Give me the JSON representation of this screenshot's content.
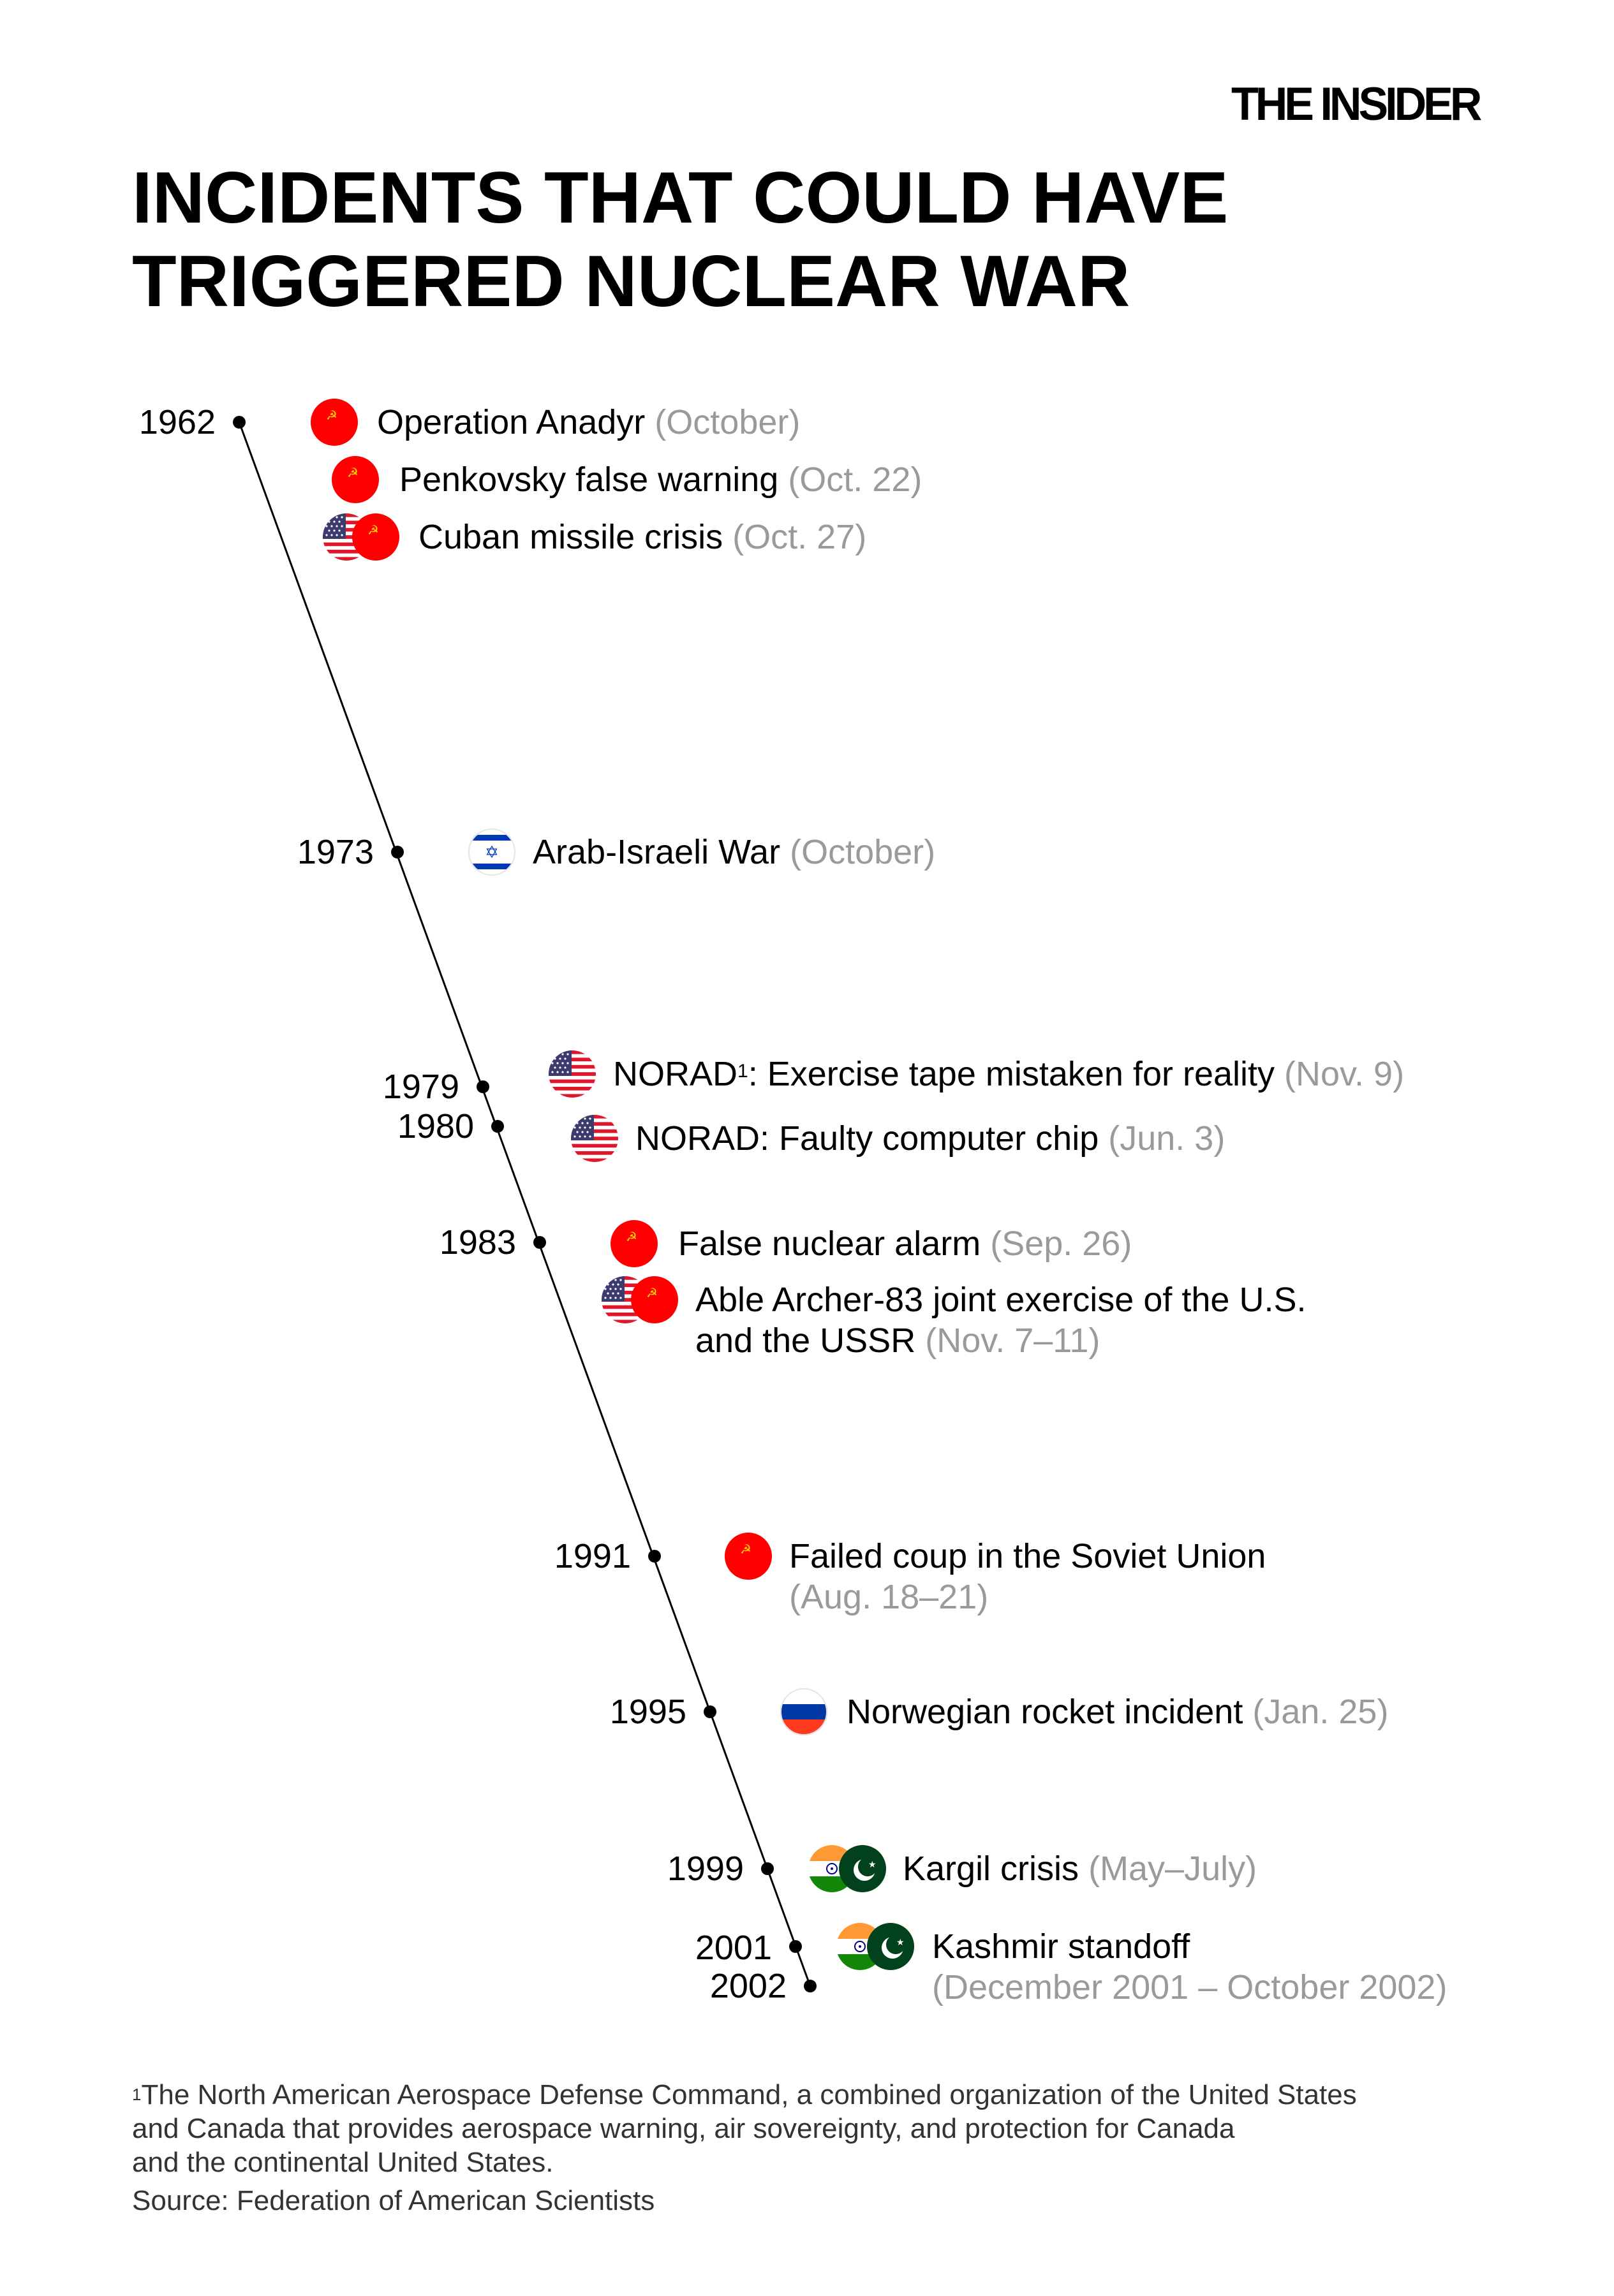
{
  "brand": "THE INSIDER",
  "title": {
    "line1": "INCIDENTS THAT COULD HAVE",
    "line2": "TRIGGERED NUCLEAR WAR"
  },
  "years": [
    "1962",
    "1973",
    "1979",
    "1980",
    "1983",
    "1991",
    "1995",
    "1999",
    "2001",
    "2002"
  ],
  "events": [
    {
      "name": "Operation Anadyr",
      "date": "(October)",
      "flags": [
        "ussr"
      ]
    },
    {
      "name": "Penkovsky false warning",
      "date": "(Oct. 22)",
      "flags": [
        "ussr"
      ]
    },
    {
      "name": "Cuban missile crisis",
      "date": "(Oct. 27)",
      "flags": [
        "usa",
        "ussr"
      ]
    },
    {
      "name": "Arab-Israeli War",
      "date": "(October)",
      "flags": [
        "israel"
      ]
    },
    {
      "name": "NORAD",
      "footnote_mark": "1",
      "name_rest": ": Exercise tape mistaken for reality",
      "date": "(Nov. 9)",
      "flags": [
        "usa"
      ]
    },
    {
      "name": "NORAD: Faulty computer chip",
      "date": "(Jun. 3)",
      "flags": [
        "usa"
      ]
    },
    {
      "name": "False nuclear alarm",
      "date": "(Sep. 26)",
      "flags": [
        "ussr"
      ]
    },
    {
      "name": "Able Archer-83 joint exercise of the U.S.",
      "name_line2": "and the USSR",
      "date": "(Nov. 7–11)",
      "flags": [
        "usa",
        "ussr"
      ]
    },
    {
      "name": "Failed coup in the Soviet Union",
      "date": "(Aug. 18–21)",
      "flags": [
        "ussr"
      ]
    },
    {
      "name": "Norwegian rocket incident",
      "date": "(Jan. 25)",
      "flags": [
        "russia"
      ]
    },
    {
      "name": "Kargil crisis",
      "date": "(May–July)",
      "flags": [
        "india",
        "pakistan"
      ]
    },
    {
      "name": "Kashmir standoff",
      "date": "(December 2001 – October 2002)",
      "flags": [
        "india",
        "pakistan"
      ]
    }
  ],
  "footnote": {
    "mark": "1",
    "line1": "The North American Aerospace Defense Command, a combined organization of the United States",
    "line2": "and Canada that provides aerospace warning, air sovereignty, and protection for Canada",
    "line3": "and the continental United States."
  },
  "source": "Source: Federation of American Scientists",
  "colors": {
    "title": "#000000",
    "date": "#9a9a9a",
    "ussr_red": "#ff0000",
    "usa_blue": "#3c3b6e",
    "israel_blue": "#0038b8",
    "pakistan_green": "#01411c",
    "india_saffron": "#ff9933",
    "india_green": "#138808"
  }
}
